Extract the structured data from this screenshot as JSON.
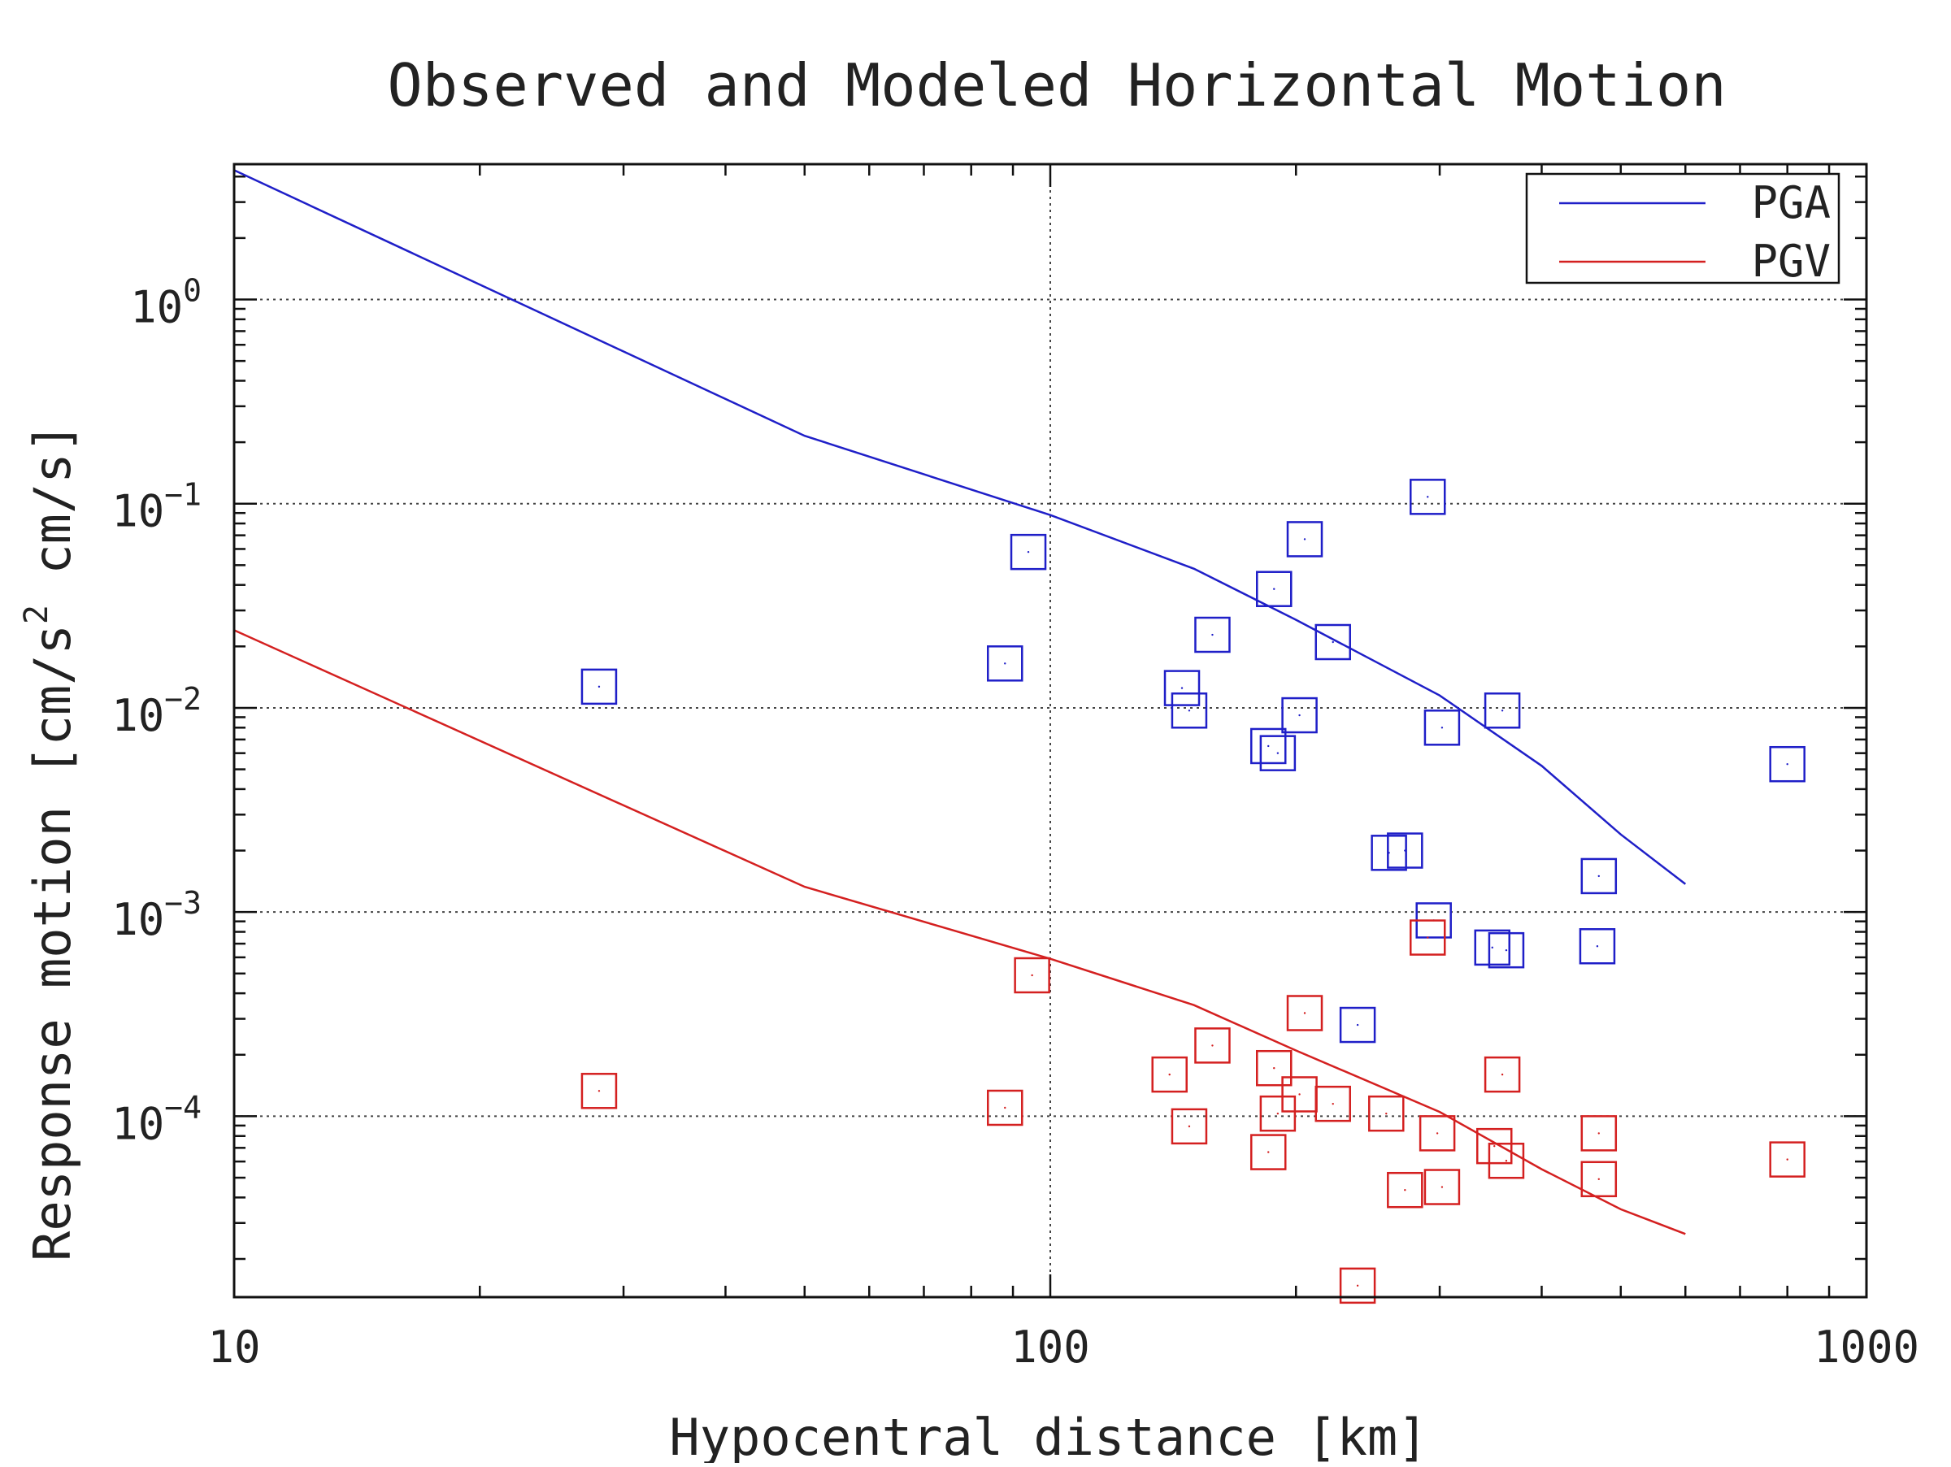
{
  "chart_data": {
    "type": "scatter",
    "title": "Observed and Modeled Horizontal Motion",
    "xlabel": "Hypocentral distance [km]",
    "ylabel": "Response motion [cm/s² cm/s]",
    "ylabel_parts": {
      "prefix": "Response motion [cm/s",
      "sup": "2",
      "suffix": "  cm/s]"
    },
    "x_scale": "log",
    "y_scale": "log",
    "xlim": [
      10,
      1000
    ],
    "ylim": [
      1.3e-05,
      4.6
    ],
    "x_ticks": [
      {
        "value": 10,
        "label": "10"
      },
      {
        "value": 100,
        "label": "100"
      },
      {
        "value": 1000,
        "label": "1000"
      }
    ],
    "y_ticks": [
      {
        "value": 1,
        "base": "10",
        "exp": "0"
      },
      {
        "value": 0.1,
        "base": "10",
        "exp": "−1"
      },
      {
        "value": 0.01,
        "base": "10",
        "exp": "−2"
      },
      {
        "value": 0.001,
        "base": "10",
        "exp": "−3"
      },
      {
        "value": 0.0001,
        "base": "10",
        "exp": "−4"
      }
    ],
    "grid": {
      "x_major": [
        100
      ],
      "y_major": [
        1,
        0.1,
        0.01,
        0.001,
        0.0001
      ]
    },
    "legend": {
      "position": "top-right",
      "entries": [
        "PGA",
        "PGV"
      ]
    },
    "colors": {
      "PGA": "#1f1fc8",
      "PGV": "#d42020"
    },
    "lines": [
      {
        "name": "PGA",
        "points": [
          [
            10,
            4.3
          ],
          [
            50,
            0.215
          ],
          [
            100,
            0.088
          ],
          [
            150,
            0.048
          ],
          [
            200,
            0.027
          ],
          [
            300,
            0.0115
          ],
          [
            400,
            0.0052
          ],
          [
            500,
            0.0024
          ],
          [
            600,
            0.00137
          ]
        ]
      },
      {
        "name": "PGV",
        "points": [
          [
            10,
            0.024
          ],
          [
            50,
            0.00133
          ],
          [
            100,
            0.00059
          ],
          [
            150,
            0.00035
          ],
          [
            200,
            0.00021
          ],
          [
            300,
            0.000105
          ],
          [
            400,
            5.5e-05
          ],
          [
            500,
            3.5e-05
          ],
          [
            600,
            2.65e-05
          ]
        ]
      }
    ],
    "series": [
      {
        "name": "PGA",
        "marker": "open-square",
        "points": [
          [
            28,
            0.0127
          ],
          [
            88,
            0.0165
          ],
          [
            94,
            0.058
          ],
          [
            145,
            0.0125
          ],
          [
            148,
            0.0097
          ],
          [
            158,
            0.0228
          ],
          [
            185,
            0.0065
          ],
          [
            188,
            0.0382
          ],
          [
            190,
            0.006
          ],
          [
            202,
            0.0092
          ],
          [
            205,
            0.067
          ],
          [
            222,
            0.021
          ],
          [
            238,
            0.00028
          ],
          [
            260,
            0.00195
          ],
          [
            272,
            0.002
          ],
          [
            290,
            0.108
          ],
          [
            295,
            0.00091
          ],
          [
            302,
            0.008
          ],
          [
            348,
            0.00067
          ],
          [
            358,
            0.0097
          ],
          [
            362,
            0.00065
          ],
          [
            470,
            0.0015
          ],
          [
            468,
            0.00068
          ],
          [
            800,
            0.0053
          ]
        ]
      },
      {
        "name": "PGV",
        "marker": "open-square",
        "points": [
          [
            28,
            0.000133
          ],
          [
            88,
            0.00011
          ],
          [
            95,
            0.00049
          ],
          [
            140,
            0.00016
          ],
          [
            148,
            8.92e-05
          ],
          [
            158,
            0.000222
          ],
          [
            185,
            6.67e-05
          ],
          [
            188,
            0.000172
          ],
          [
            190,
            0.000103
          ],
          [
            202,
            0.000128
          ],
          [
            205,
            0.00032
          ],
          [
            222,
            0.000115
          ],
          [
            238,
            1.48e-05
          ],
          [
            258,
            0.000103
          ],
          [
            272,
            4.35e-05
          ],
          [
            290,
            0.00075
          ],
          [
            298,
            8.25e-05
          ],
          [
            302,
            4.5e-05
          ],
          [
            350,
            7.14e-05
          ],
          [
            358,
            0.00016
          ],
          [
            362,
            6.05e-05
          ],
          [
            470,
            8.25e-05
          ],
          [
            470,
            4.92e-05
          ],
          [
            800,
            6.14e-05
          ]
        ]
      }
    ]
  }
}
